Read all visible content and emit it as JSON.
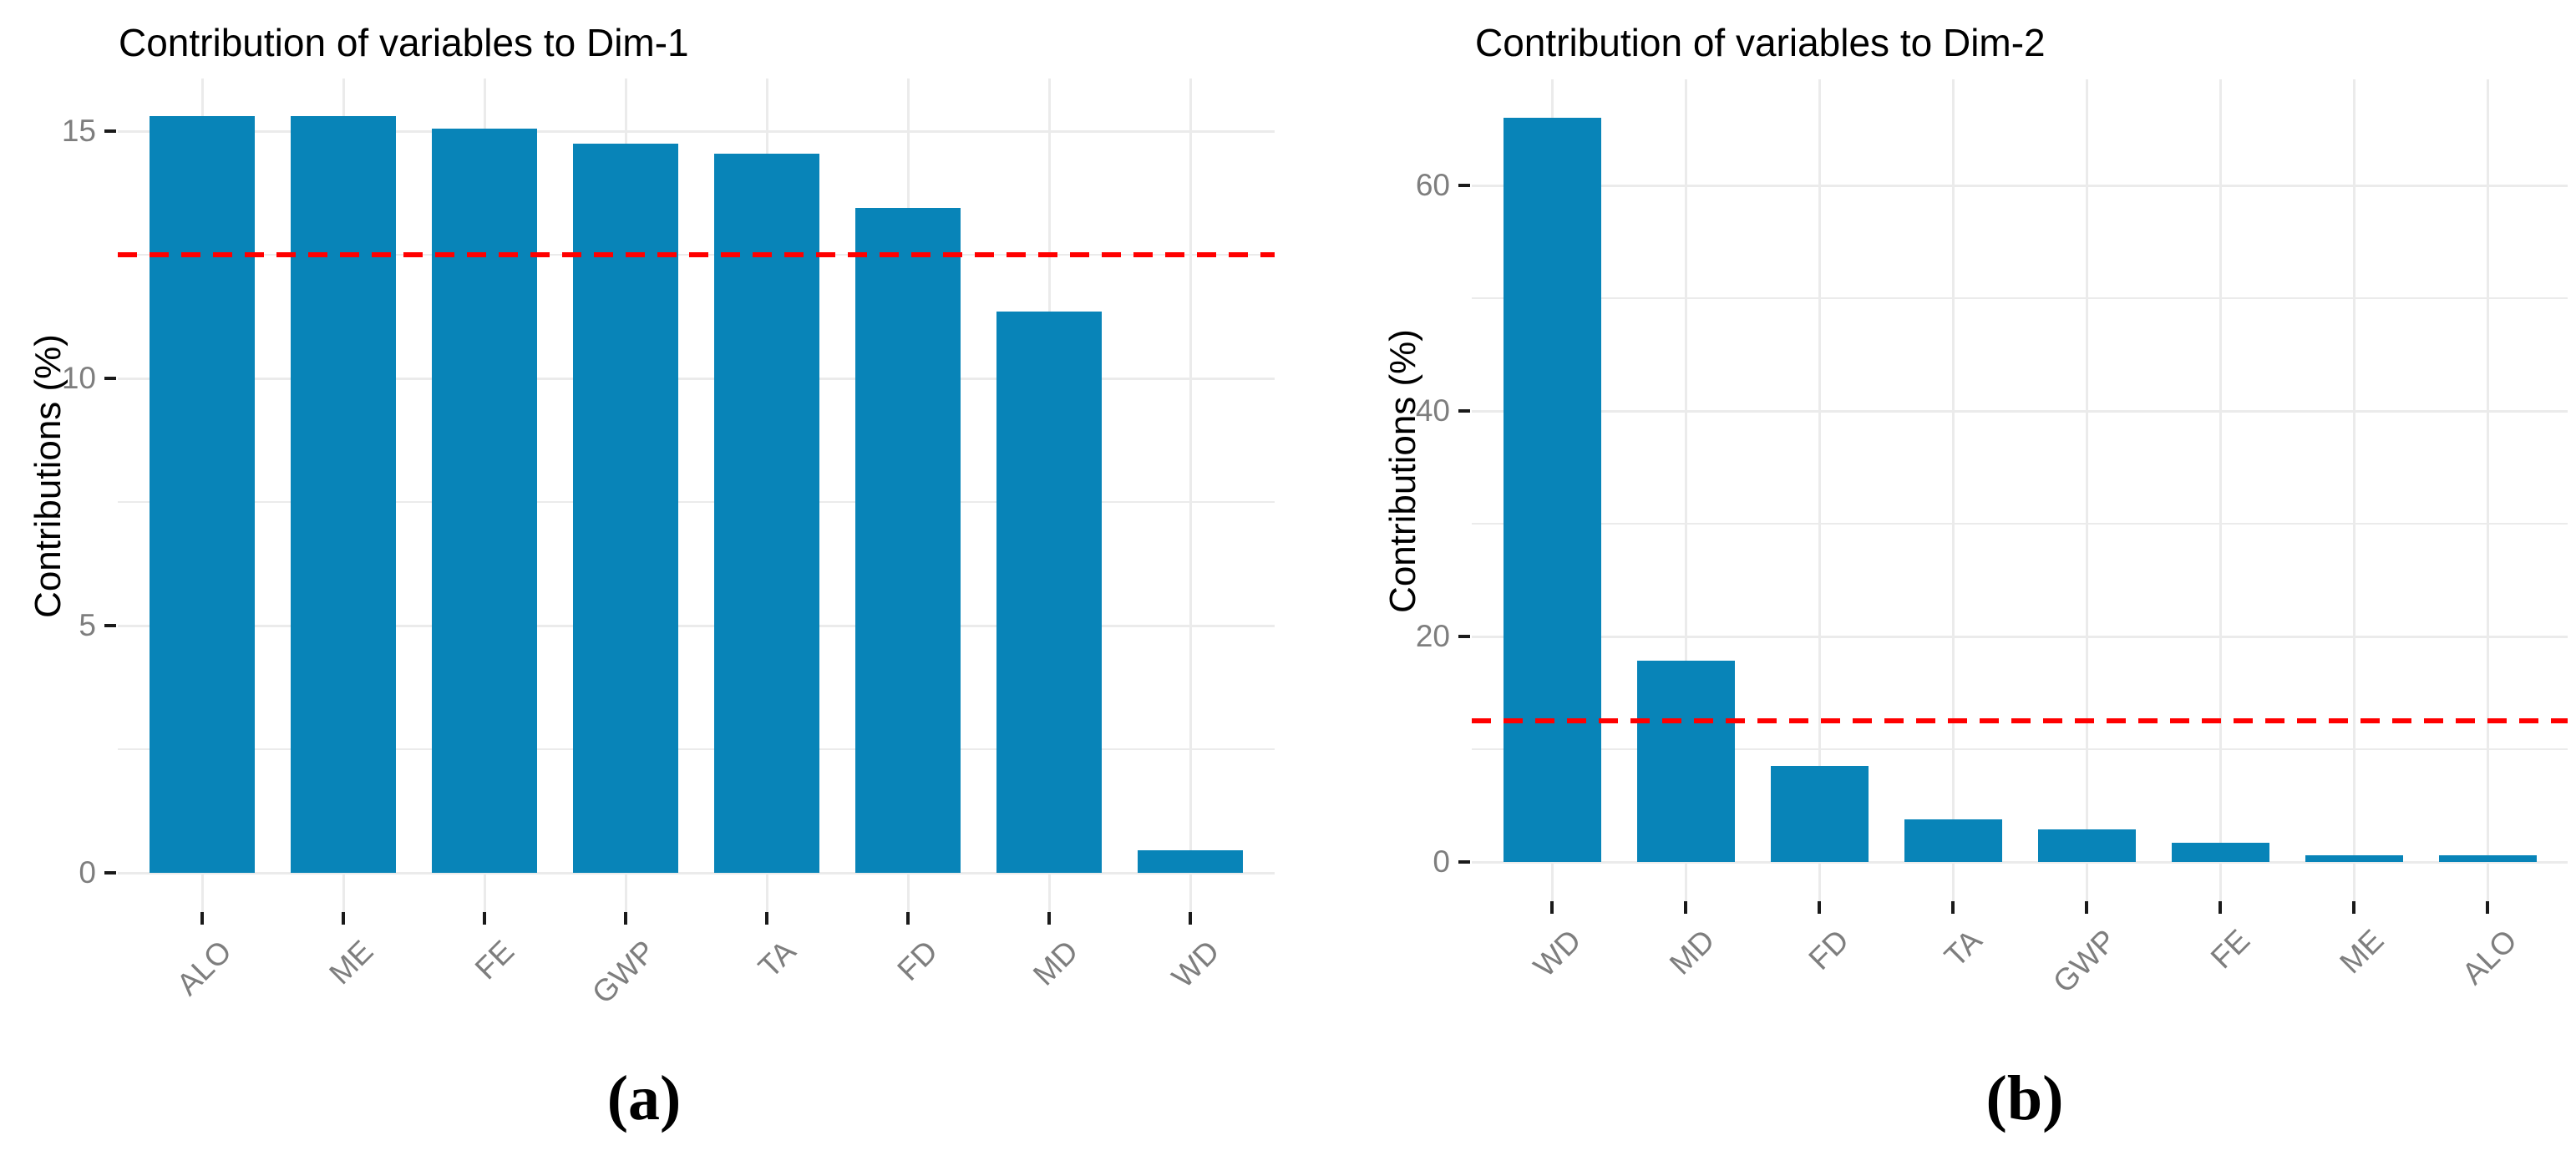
{
  "style": {
    "background": "#ffffff",
    "grid_color": "#ebebeb",
    "axis_text_color": "#7e7e7e",
    "tick_color": "#1a1a1a",
    "title_color": "#000000"
  },
  "chart_data": [
    {
      "type": "bar",
      "title": "Contribution of variables to Dim-1",
      "ylabel": "Contributions (%)",
      "xlabel": "",
      "caption": "(a)",
      "categories": [
        "ALO",
        "ME",
        "FE",
        "GWP",
        "TA",
        "FD",
        "MD",
        "WD"
      ],
      "values": [
        15.3,
        15.3,
        15.05,
        14.75,
        14.55,
        13.45,
        11.35,
        0.45
      ],
      "yticks": [
        0,
        5,
        10,
        15
      ],
      "yminor": [
        2.5,
        7.5,
        12.5
      ],
      "ylim": [
        0,
        16.1
      ],
      "ref_line": 12.5,
      "grid": true,
      "legend": "none",
      "bar_color": "#0884b8",
      "ref_line_color": "#ff0000"
    },
    {
      "type": "bar",
      "title": "Contribution of variables to Dim-2",
      "ylabel": "Contributions (%)",
      "xlabel": "",
      "caption": "(b)",
      "categories": [
        "WD",
        "MD",
        "FD",
        "TA",
        "GWP",
        "FE",
        "ME",
        "ALO"
      ],
      "values": [
        66.0,
        17.85,
        8.5,
        3.8,
        2.9,
        1.7,
        0.6,
        0.6
      ],
      "yticks": [
        0,
        20,
        40,
        60
      ],
      "yminor": [
        10,
        30,
        50
      ],
      "ylim": [
        0,
        69.3
      ],
      "ref_line": 12.5,
      "grid": true,
      "legend": "none",
      "bar_color": "#0884b8",
      "ref_line_color": "#ff0000"
    }
  ]
}
